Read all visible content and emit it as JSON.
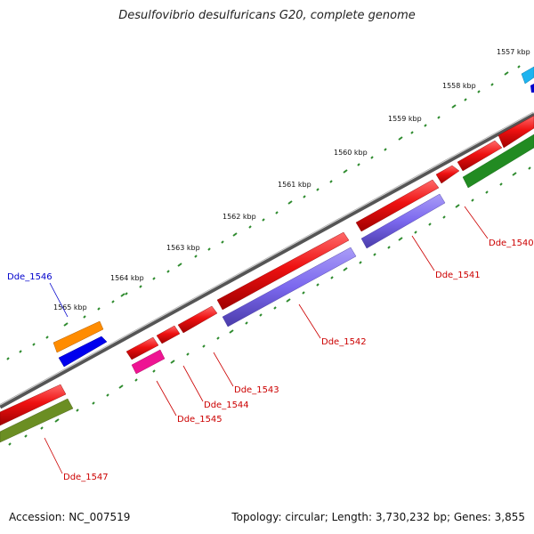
{
  "title": "Desulfovibrio desulfuricans G20, complete genome",
  "accession_text": "Accession: NC_007519",
  "summary_text": "Topology: circular; Length: 3,730,232 bp; Genes: 3,855",
  "kbp_labels": [
    "1557 kbp",
    "1558 kbp",
    "1559 kbp",
    "1560 kbp",
    "1561 kbp",
    "1562 kbp",
    "1563 kbp",
    "1564 kbp",
    "1565 kbp"
  ],
  "gene_labels": {
    "dde_1540": "Dde_1540",
    "dde_1541": "Dde_1541",
    "dde_1542": "Dde_1542",
    "dde_1543": "Dde_1543",
    "dde_1544": "Dde_1544",
    "dde_1545": "Dde_1545",
    "dde_1546": "Dde_1546",
    "dde_1547": "Dde_1547"
  },
  "colors": {
    "backbone": "#7a7a7a",
    "tick": "#2e8b2e",
    "red_gene": "#ee1111",
    "purple_gene": "#7b68ee",
    "orange_gene": "#ff8c00",
    "blue_gene": "#0000ee",
    "magenta_gene": "#ee1493",
    "olive_gene": "#6b8e23",
    "green_gene": "#228b22",
    "cyan_gene": "#1eb4f0",
    "label_red": "#cc0000",
    "label_blue": "#0000cc"
  }
}
